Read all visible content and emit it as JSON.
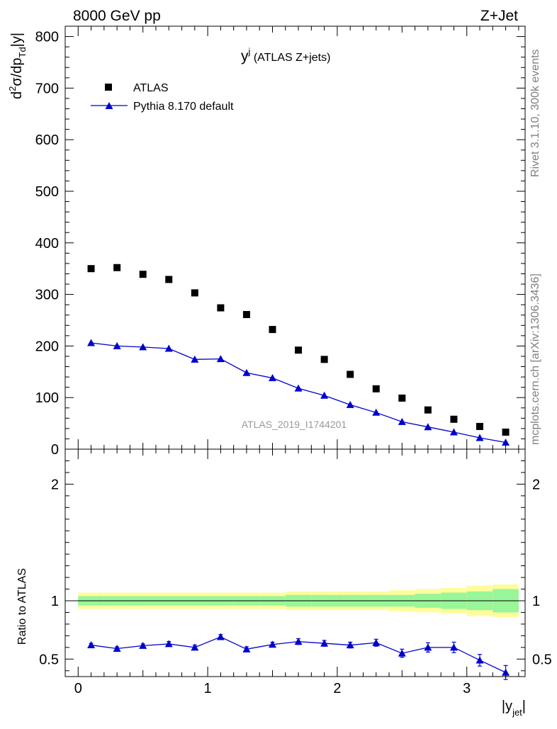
{
  "header": {
    "left": "8000 GeV pp",
    "right": "Z+Jet"
  },
  "side_labels": {
    "rivet": "Rivet 3.1.10,  300k events",
    "mcplots": "mcplots.cern.ch [arXiv:1306.3436]"
  },
  "watermark": "ATLAS_2019_I1744201",
  "chart_data": [
    {
      "type": "scatter",
      "title_main": "y",
      "title_sup": "j",
      "title_rest": " (ATLAS Z+jets)",
      "ylabel": "d²σ/dp_Td|y|",
      "xlim": [
        -0.1,
        3.45
      ],
      "ylim": [
        0,
        820
      ],
      "yticks": [
        0,
        100,
        200,
        300,
        400,
        500,
        600,
        700,
        800
      ],
      "x": [
        0.1,
        0.3,
        0.5,
        0.7,
        0.9,
        1.1,
        1.3,
        1.5,
        1.7,
        1.9,
        2.1,
        2.3,
        2.5,
        2.7,
        2.9,
        3.1,
        3.3
      ],
      "series": [
        {
          "name": "ATLAS",
          "color": "#000000",
          "marker": "square",
          "values": [
            350,
            352,
            339,
            329,
            303,
            274,
            261,
            232,
            192,
            174,
            145,
            117,
            99,
            76,
            58,
            44,
            33
          ]
        },
        {
          "name": "Pythia 8.170 default",
          "color": "#0000cc",
          "marker": "triangle",
          "values": [
            206,
            200,
            198,
            195,
            174,
            175,
            148,
            138,
            118,
            104,
            86,
            71,
            53,
            43,
            33,
            22,
            13
          ]
        }
      ],
      "legend": "top-left"
    },
    {
      "type": "line",
      "ylabel": "Ratio to ATLAS",
      "xlabel_main": "|y",
      "xlabel_sub": "jet",
      "xlabel_end": "|",
      "xlim": [
        -0.1,
        3.45
      ],
      "ylim": [
        0.35,
        2.3
      ],
      "yticks": [
        0.5,
        1,
        2
      ],
      "xticks": [
        0,
        1,
        2,
        3
      ],
      "bins": [
        0.0,
        0.2,
        0.4,
        0.6,
        0.8,
        1.0,
        1.2,
        1.4,
        1.6,
        1.8,
        2.0,
        2.2,
        2.4,
        2.6,
        2.8,
        3.0,
        3.2,
        3.4
      ],
      "band_yellow": [
        0.07,
        0.07,
        0.07,
        0.07,
        0.07,
        0.07,
        0.07,
        0.07,
        0.08,
        0.08,
        0.08,
        0.08,
        0.09,
        0.1,
        0.11,
        0.13,
        0.14
      ],
      "band_green": [
        0.04,
        0.04,
        0.04,
        0.04,
        0.04,
        0.04,
        0.04,
        0.04,
        0.05,
        0.05,
        0.05,
        0.05,
        0.05,
        0.06,
        0.07,
        0.08,
        0.1
      ],
      "ratio": {
        "name": "Pythia 8.170 default",
        "color": "#0000cc",
        "x": [
          0.1,
          0.3,
          0.5,
          0.7,
          0.9,
          1.1,
          1.3,
          1.5,
          1.7,
          1.9,
          2.1,
          2.3,
          2.5,
          2.7,
          2.9,
          3.1,
          3.3
        ],
        "values": [
          0.62,
          0.59,
          0.615,
          0.63,
          0.6,
          0.69,
          0.585,
          0.625,
          0.65,
          0.635,
          0.62,
          0.64,
          0.55,
          0.6,
          0.6,
          0.49,
          0.385
        ],
        "errors": [
          0.015,
          0.015,
          0.015,
          0.02,
          0.02,
          0.02,
          0.02,
          0.02,
          0.025,
          0.025,
          0.025,
          0.03,
          0.035,
          0.04,
          0.045,
          0.05,
          0.06
        ]
      }
    }
  ]
}
